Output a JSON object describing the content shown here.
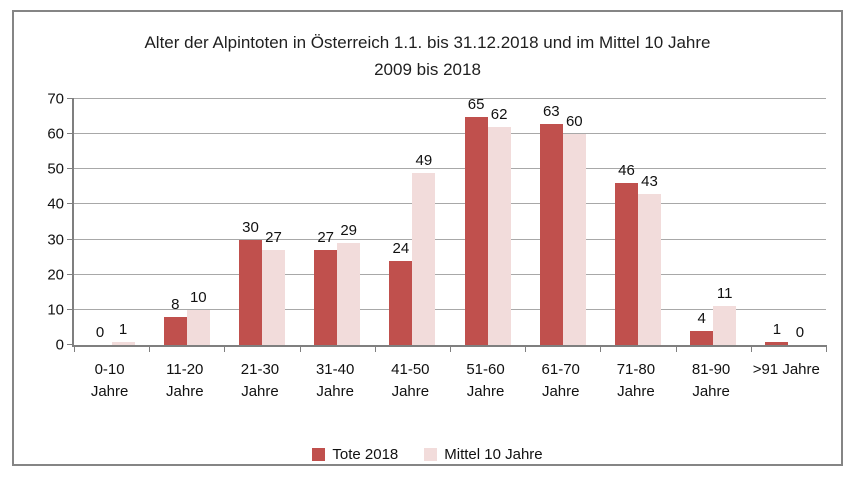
{
  "chart_data": {
    "type": "bar",
    "title": "Alter der Alpintoten in Österreich 1.1. bis 31.12.2018 und im Mittel 10 Jahre 2009 bis 2018",
    "categories": [
      "0-10 Jahre",
      "11-20 Jahre",
      "21-30 Jahre",
      "31-40 Jahre",
      "41-50 Jahre",
      "51-60 Jahre",
      "61-70 Jahre",
      "71-80 Jahre",
      "81-90 Jahre",
      ">91 Jahre"
    ],
    "series": [
      {
        "name": "Tote 2018",
        "color": "#C0504D",
        "values": [
          0,
          8,
          30,
          27,
          24,
          65,
          63,
          46,
          4,
          1
        ]
      },
      {
        "name": "Mittel 10 Jahre",
        "color": "#F2DCDB",
        "values": [
          1,
          10,
          27,
          29,
          49,
          62,
          60,
          43,
          11,
          0
        ]
      }
    ],
    "xlabel": "",
    "ylabel": "",
    "ylim": [
      0,
      70
    ],
    "ytick_step": 10,
    "grid": true,
    "legend_position": "bottom",
    "data_labels": true
  },
  "style": {
    "gridline_color": "#a8a8a8",
    "axis_color": "#7f7f7f",
    "frame_border_color": "#858585",
    "text_color": "#111111"
  }
}
